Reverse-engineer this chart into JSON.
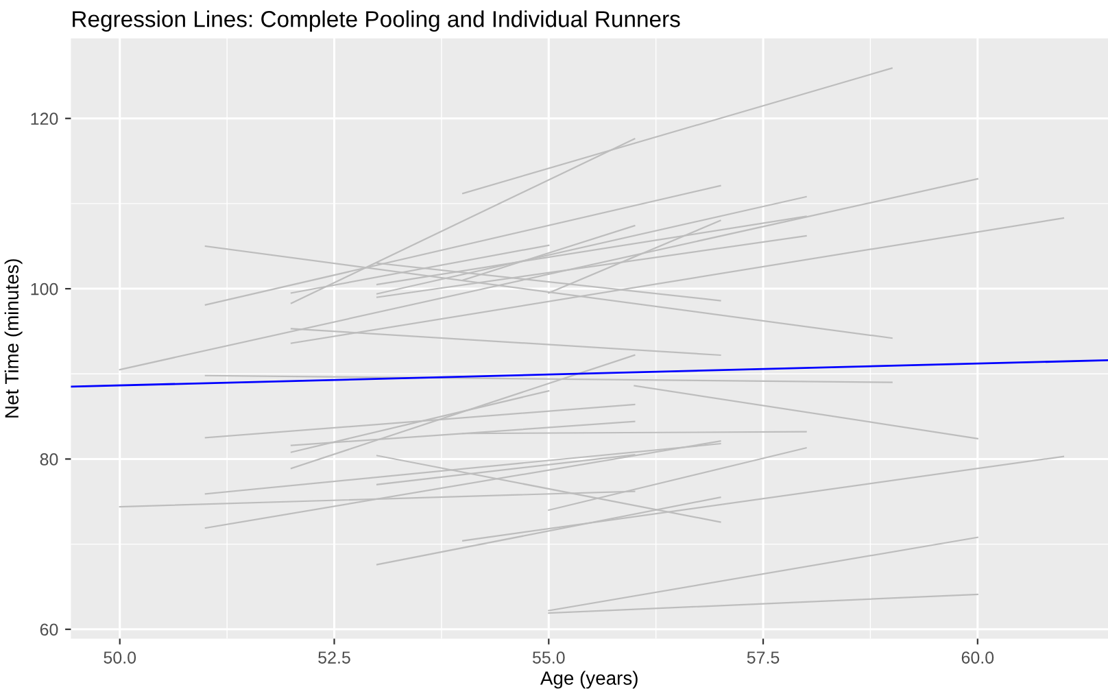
{
  "chart_data": {
    "type": "line",
    "title": "Regression Lines: Complete Pooling and Individual Runners",
    "xlabel": "Age (years)",
    "ylabel": "Net Time (minutes)",
    "xlim": [
      49.43,
      61.52
    ],
    "ylim": [
      58.9,
      129.4
    ],
    "xticks": [
      {
        "value": 50,
        "label": "50.0"
      },
      {
        "value": 52.5,
        "label": "52.5"
      },
      {
        "value": 55,
        "label": "55.0"
      },
      {
        "value": 57.5,
        "label": "57.5"
      },
      {
        "value": 60,
        "label": "60.0"
      }
    ],
    "yticks": [
      60,
      80,
      100,
      120
    ],
    "grid": true,
    "marker": "none",
    "line_style": "solid",
    "series": [
      {
        "color": "#bdbdbd",
        "x": [
          54,
          59
        ],
        "values": [
          111.2,
          125.9
        ]
      },
      {
        "color": "#bdbdbd",
        "x": [
          52,
          56
        ],
        "values": [
          98.3,
          117.6
        ]
      },
      {
        "color": "#bdbdbd",
        "x": [
          51,
          57
        ],
        "values": [
          98.1,
          112.1
        ]
      },
      {
        "color": "#bdbdbd",
        "x": [
          51,
          59
        ],
        "values": [
          105.0,
          94.2
        ]
      },
      {
        "color": "#bdbdbd",
        "x": [
          50,
          60
        ],
        "values": [
          90.5,
          112.9
        ]
      },
      {
        "color": "#bdbdbd",
        "x": [
          52,
          61
        ],
        "values": [
          93.6,
          108.3
        ]
      },
      {
        "color": "#bdbdbd",
        "x": [
          52,
          57
        ],
        "values": [
          95.3,
          92.2
        ]
      },
      {
        "color": "#bdbdbd",
        "x": [
          53,
          58
        ],
        "values": [
          99.4,
          110.8
        ]
      },
      {
        "color": "#bdbdbd",
        "x": [
          53,
          58
        ],
        "values": [
          100.5,
          108.5
        ]
      },
      {
        "color": "#bdbdbd",
        "x": [
          53,
          58
        ],
        "values": [
          99.0,
          106.2
        ]
      },
      {
        "color": "#bdbdbd",
        "x": [
          54,
          56
        ],
        "values": [
          101.0,
          107.4
        ]
      },
      {
        "color": "#bdbdbd",
        "x": [
          53,
          57
        ],
        "values": [
          103.0,
          98.6
        ]
      },
      {
        "color": "#bdbdbd",
        "x": [
          52,
          55
        ],
        "values": [
          99.5,
          105.1
        ]
      },
      {
        "color": "#bdbdbd",
        "x": [
          55,
          57
        ],
        "values": [
          99.5,
          108.0
        ]
      },
      {
        "color": "#bdbdbd",
        "x": [
          51,
          59
        ],
        "values": [
          89.8,
          89.0
        ]
      },
      {
        "color": "#bdbdbd",
        "x": [
          51,
          56
        ],
        "values": [
          82.5,
          86.4
        ]
      },
      {
        "color": "#bdbdbd",
        "x": [
          54,
          58
        ],
        "values": [
          83.0,
          83.2
        ]
      },
      {
        "color": "#bdbdbd",
        "x": [
          51,
          57
        ],
        "values": [
          75.9,
          81.8
        ]
      },
      {
        "color": "#bdbdbd",
        "x": [
          51,
          57
        ],
        "values": [
          71.9,
          82.1
        ]
      },
      {
        "color": "#bdbdbd",
        "x": [
          50,
          56
        ],
        "values": [
          74.4,
          76.2
        ]
      },
      {
        "color": "#bdbdbd",
        "x": [
          52,
          56
        ],
        "values": [
          81.6,
          84.4
        ]
      },
      {
        "color": "#bdbdbd",
        "x": [
          52,
          55
        ],
        "values": [
          80.8,
          88.0
        ]
      },
      {
        "color": "#bdbdbd",
        "x": [
          52,
          56
        ],
        "values": [
          78.9,
          92.2
        ]
      },
      {
        "color": "#bdbdbd",
        "x": [
          53,
          57
        ],
        "values": [
          80.4,
          72.6
        ]
      },
      {
        "color": "#bdbdbd",
        "x": [
          53,
          56
        ],
        "values": [
          77.0,
          80.5
        ]
      },
      {
        "color": "#bdbdbd",
        "x": [
          53,
          57
        ],
        "values": [
          67.6,
          75.5
        ]
      },
      {
        "color": "#bdbdbd",
        "x": [
          54,
          61
        ],
        "values": [
          70.4,
          80.3
        ]
      },
      {
        "color": "#bdbdbd",
        "x": [
          55,
          58
        ],
        "values": [
          74.0,
          81.3
        ]
      },
      {
        "color": "#bdbdbd",
        "x": [
          55,
          60
        ],
        "values": [
          62.2,
          70.8
        ]
      },
      {
        "color": "#bdbdbd",
        "x": [
          55,
          60
        ],
        "values": [
          61.9,
          64.1
        ]
      },
      {
        "color": "#bdbdbd",
        "x": [
          56,
          60
        ],
        "values": [
          88.6,
          82.4
        ]
      },
      {
        "color": "#0000ff",
        "x": [
          49.43,
          61.52
        ],
        "values": [
          88.5,
          91.6
        ]
      }
    ]
  }
}
